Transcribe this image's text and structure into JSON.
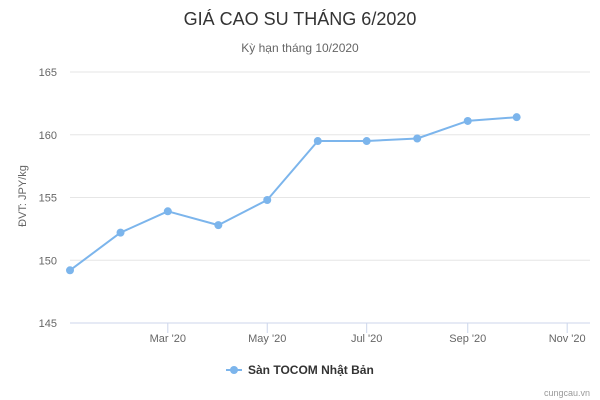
{
  "chart_data": {
    "type": "line",
    "title": "GIÁ CAO SU THÁNG 6/2020",
    "subtitle": "Kỳ hạn tháng 10/2020",
    "ylabel": "ĐVT: JPY/kg",
    "xlabel": "",
    "ylim": [
      145,
      165
    ],
    "yticks": [
      145,
      150,
      155,
      160,
      165
    ],
    "xlim": [
      "2020-01-01",
      "2020-11-15"
    ],
    "xticks": [
      {
        "date": "2020-03-01",
        "label": "Mar '20"
      },
      {
        "date": "2020-05-01",
        "label": "May '20"
      },
      {
        "date": "2020-07-01",
        "label": "Jul '20"
      },
      {
        "date": "2020-09-01",
        "label": "Sep '20"
      },
      {
        "date": "2020-11-01",
        "label": "Nov '20"
      }
    ],
    "grid": true,
    "legend_position": "bottom-center",
    "series": [
      {
        "name": "Sàn TOCOM Nhật Bản",
        "color": "#7cb5ec",
        "points": [
          {
            "x": "2020-01-01",
            "y": 149.2
          },
          {
            "x": "2020-02-01",
            "y": 152.2
          },
          {
            "x": "2020-03-01",
            "y": 153.9
          },
          {
            "x": "2020-04-01",
            "y": 152.8
          },
          {
            "x": "2020-05-01",
            "y": 154.8
          },
          {
            "x": "2020-06-01",
            "y": 159.5
          },
          {
            "x": "2020-07-01",
            "y": 159.5
          },
          {
            "x": "2020-08-01",
            "y": 159.7
          },
          {
            "x": "2020-09-01",
            "y": 161.1
          },
          {
            "x": "2020-10-01",
            "y": 161.4
          }
        ]
      }
    ]
  },
  "credit": "cungcau.vn"
}
